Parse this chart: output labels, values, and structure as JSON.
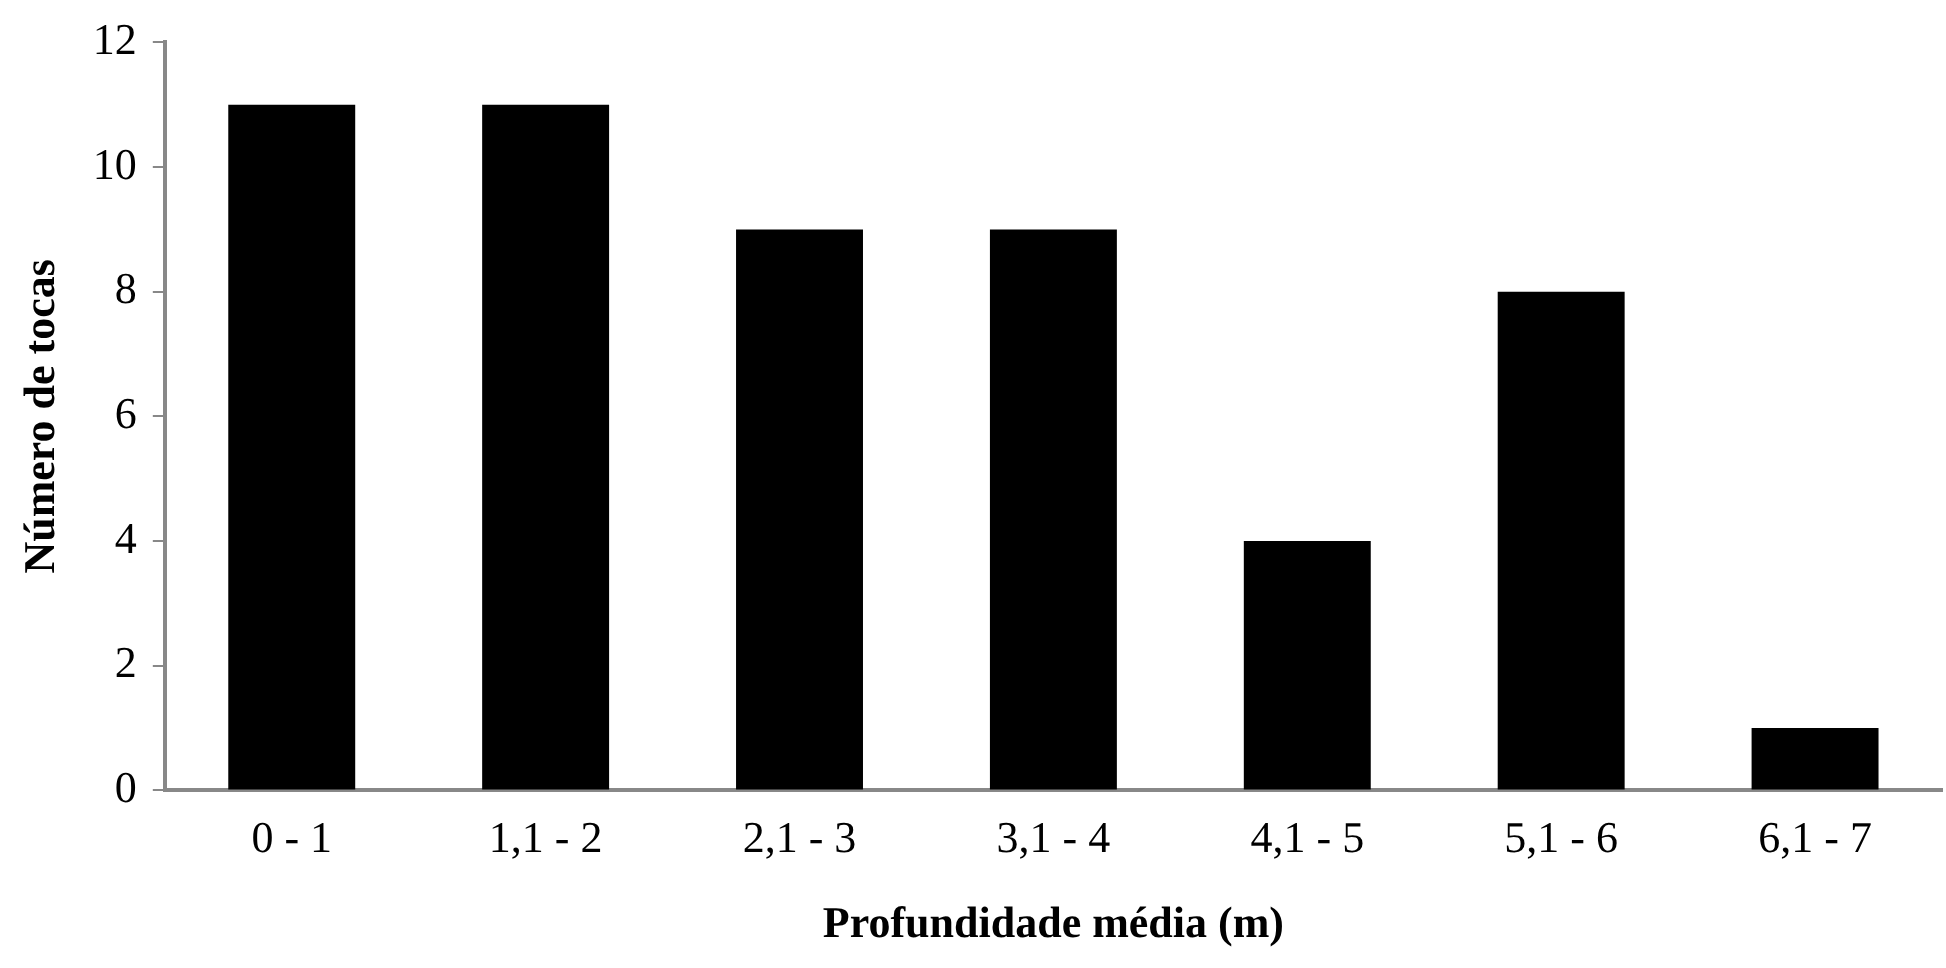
{
  "chart_data": {
    "type": "bar",
    "xlabel": "Profundidade média (m)",
    "ylabel": "Número de tocas",
    "categories": [
      "0 - 1",
      "1,1 - 2",
      "2,1 - 3",
      "3,1 - 4",
      "4,1 - 5",
      "5,1 - 6",
      "6,1 - 7"
    ],
    "values": [
      11,
      11,
      9,
      9,
      4,
      8,
      1
    ],
    "color": "#000000",
    "ylim": [
      0,
      12
    ],
    "yticks": [
      0,
      2,
      4,
      6,
      8,
      10,
      12
    ],
    "grid": false,
    "legend": false
  }
}
